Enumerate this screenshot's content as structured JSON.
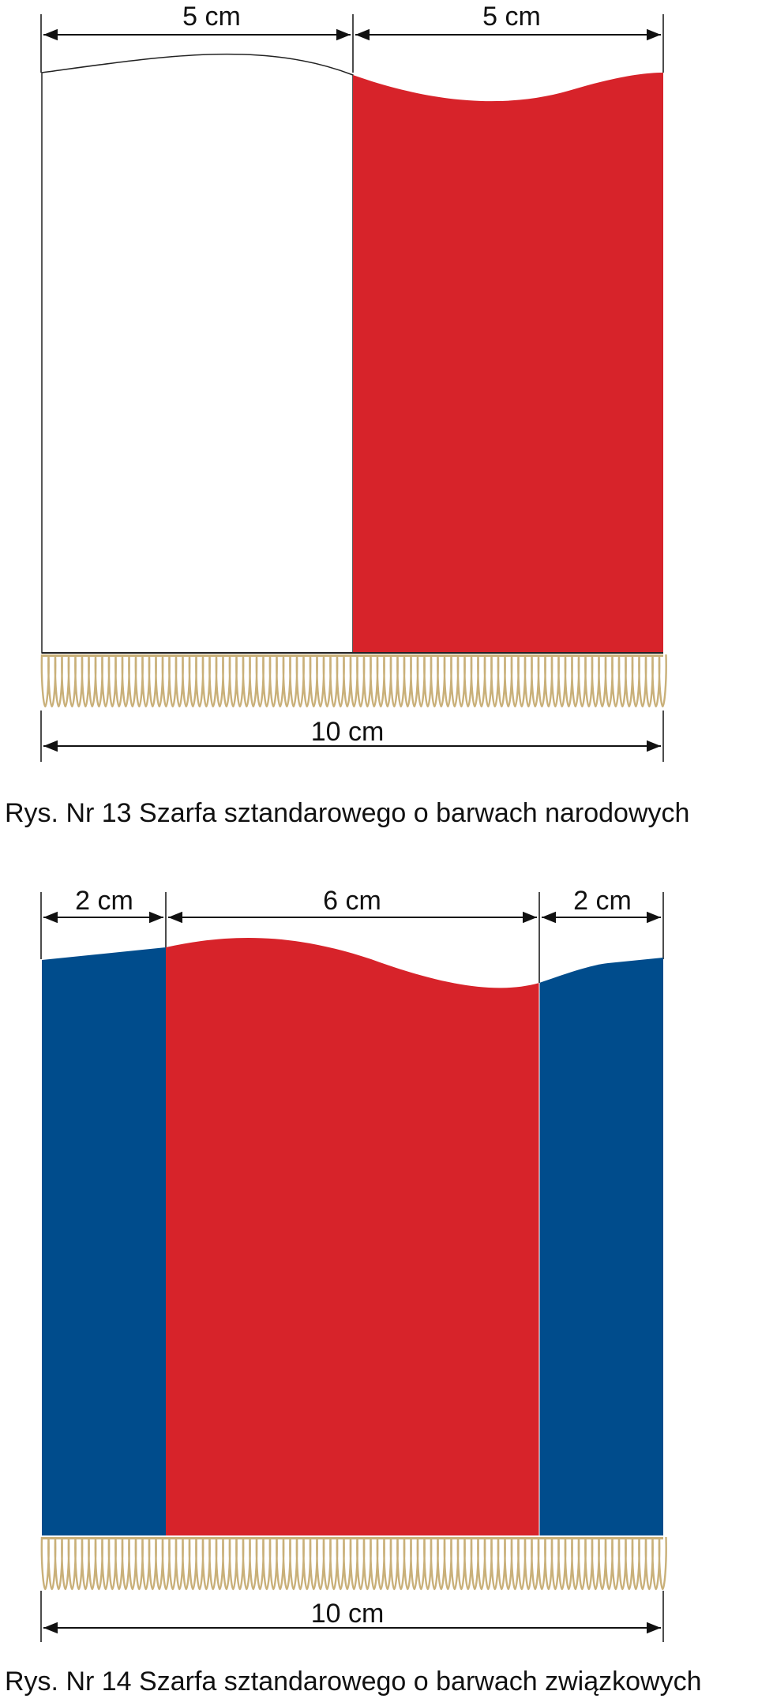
{
  "figures": [
    {
      "id": "fig13",
      "caption": "Rys. Nr 13  Szarfa sztandarowego o barwach narodowych",
      "top_dimensions": [
        "5 cm",
        "5 cm"
      ],
      "bottom_dimension": "10 cm",
      "stripes": [
        {
          "color_name": "white",
          "color": "#ffffff",
          "width_cm": 5
        },
        {
          "color_name": "red",
          "color": "#d7232a",
          "width_cm": 5
        }
      ],
      "fringe_color": "#c9b079"
    },
    {
      "id": "fig14",
      "caption": "Rys. Nr 14  Szarfa sztandarowego o barwach związkowych",
      "top_dimensions": [
        "2 cm",
        "6 cm",
        "2 cm"
      ],
      "bottom_dimension": "10 cm",
      "stripes": [
        {
          "color_name": "blue",
          "color": "#004c8c",
          "width_cm": 2
        },
        {
          "color_name": "red",
          "color": "#d7232a",
          "width_cm": 6
        },
        {
          "color_name": "blue",
          "color": "#004c8c",
          "width_cm": 2
        }
      ],
      "fringe_color": "#c9b079"
    }
  ]
}
